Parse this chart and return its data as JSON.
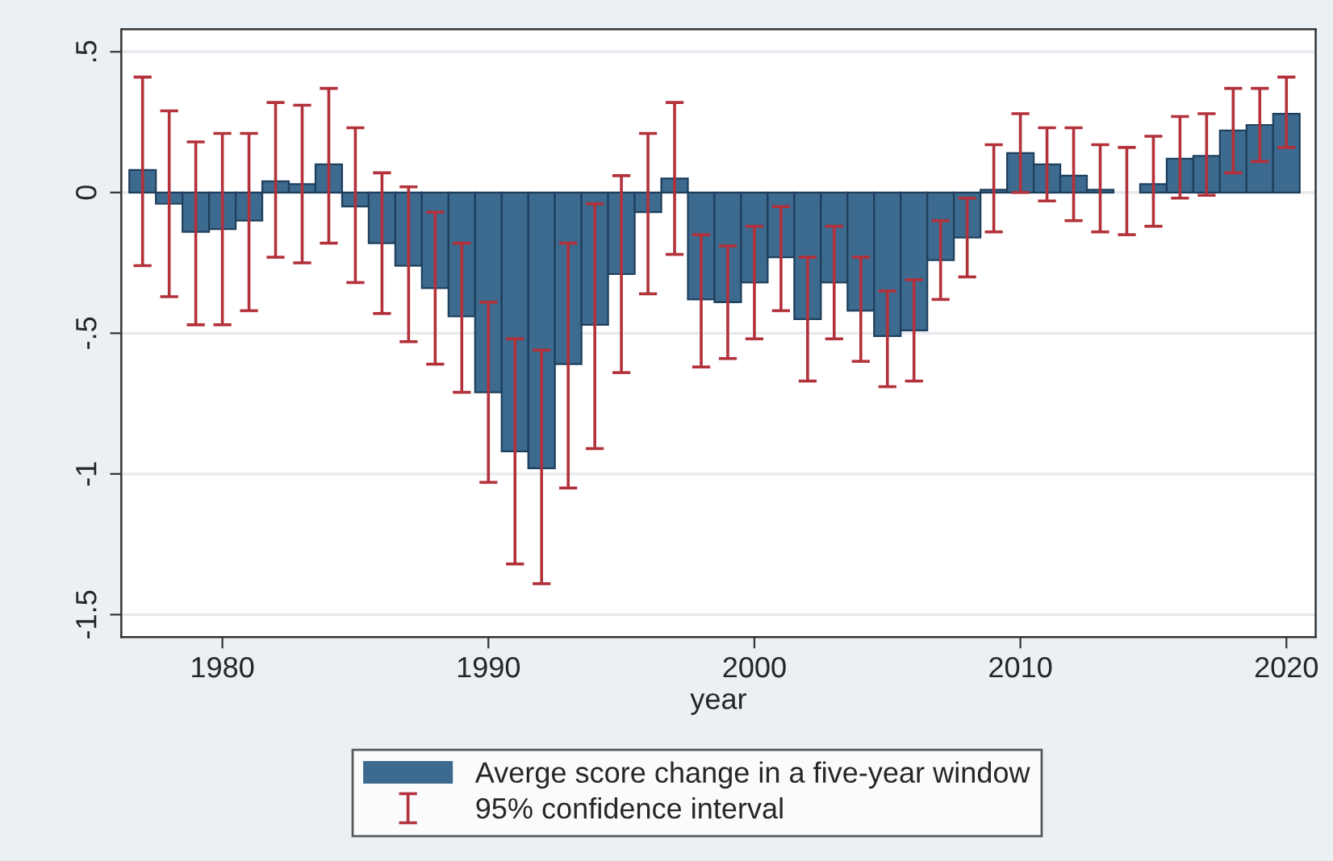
{
  "chart_data": {
    "type": "bar",
    "xlabel": "year",
    "x": [
      1977,
      1978,
      1979,
      1980,
      1981,
      1982,
      1983,
      1984,
      1985,
      1986,
      1987,
      1988,
      1989,
      1990,
      1991,
      1992,
      1993,
      1994,
      1995,
      1996,
      1997,
      1998,
      1999,
      2000,
      2001,
      2002,
      2003,
      2004,
      2005,
      2006,
      2007,
      2008,
      2009,
      2010,
      2011,
      2012,
      2013,
      2014,
      2015,
      2016,
      2017,
      2018,
      2019,
      2020
    ],
    "series": [
      {
        "name": "Averge score change in a five-year window",
        "color": "#3d6a8f",
        "values": [
          0.08,
          -0.04,
          -0.14,
          -0.13,
          -0.1,
          0.04,
          0.03,
          0.1,
          -0.05,
          -0.18,
          -0.26,
          -0.34,
          -0.44,
          -0.71,
          -0.92,
          -0.98,
          -0.61,
          -0.47,
          -0.29,
          -0.07,
          0.05,
          -0.38,
          -0.39,
          -0.32,
          -0.23,
          -0.45,
          -0.32,
          -0.42,
          -0.51,
          -0.49,
          -0.24,
          -0.16,
          0.01,
          0.14,
          0.1,
          0.06,
          0.01,
          0.0,
          0.03,
          0.12,
          0.13,
          0.22,
          0.24,
          0.28
        ],
        "errors": [
          [
            -0.26,
            0.41
          ],
          [
            -0.37,
            0.29
          ],
          [
            -0.47,
            0.18
          ],
          [
            -0.47,
            0.21
          ],
          [
            -0.42,
            0.21
          ],
          [
            -0.23,
            0.32
          ],
          [
            -0.25,
            0.31
          ],
          [
            -0.18,
            0.37
          ],
          [
            -0.32,
            0.23
          ],
          [
            -0.43,
            0.07
          ],
          [
            -0.53,
            0.02
          ],
          [
            -0.61,
            -0.07
          ],
          [
            -0.71,
            -0.18
          ],
          [
            -1.03,
            -0.39
          ],
          [
            -1.32,
            -0.52
          ],
          [
            -1.39,
            -0.56
          ],
          [
            -1.05,
            -0.18
          ],
          [
            -0.91,
            -0.04
          ],
          [
            -0.64,
            0.06
          ],
          [
            -0.36,
            0.21
          ],
          [
            -0.22,
            0.32
          ],
          [
            -0.62,
            -0.15
          ],
          [
            -0.59,
            -0.19
          ],
          [
            -0.52,
            -0.12
          ],
          [
            -0.42,
            -0.05
          ],
          [
            -0.67,
            -0.23
          ],
          [
            -0.52,
            -0.12
          ],
          [
            -0.6,
            -0.23
          ],
          [
            -0.69,
            -0.35
          ],
          [
            -0.67,
            -0.31
          ],
          [
            -0.38,
            -0.1
          ],
          [
            -0.3,
            -0.02
          ],
          [
            -0.14,
            0.17
          ],
          [
            0.0,
            0.28
          ],
          [
            -0.03,
            0.23
          ],
          [
            -0.1,
            0.23
          ],
          [
            -0.14,
            0.17
          ],
          [
            -0.15,
            0.16
          ],
          [
            -0.12,
            0.2
          ],
          [
            -0.02,
            0.27
          ],
          [
            -0.01,
            0.28
          ],
          [
            0.07,
            0.37
          ],
          [
            0.11,
            0.37
          ],
          [
            0.16,
            0.41
          ]
        ]
      }
    ],
    "annotations": [
      "95% confidence interval"
    ],
    "xlim": [
      1976.2,
      2021.1
    ],
    "xticks": [
      1980,
      1990,
      2000,
      2010,
      2020
    ],
    "ylim": [
      -1.58,
      0.58
    ],
    "yticks": [
      {
        "value": -1.5,
        "label": "-1.5"
      },
      -1,
      {
        "value": -0.5,
        "label": "-.5"
      },
      0,
      {
        "value": 0.5,
        "label": ".5"
      }
    ],
    "grid": "y",
    "legend": "bottom"
  }
}
